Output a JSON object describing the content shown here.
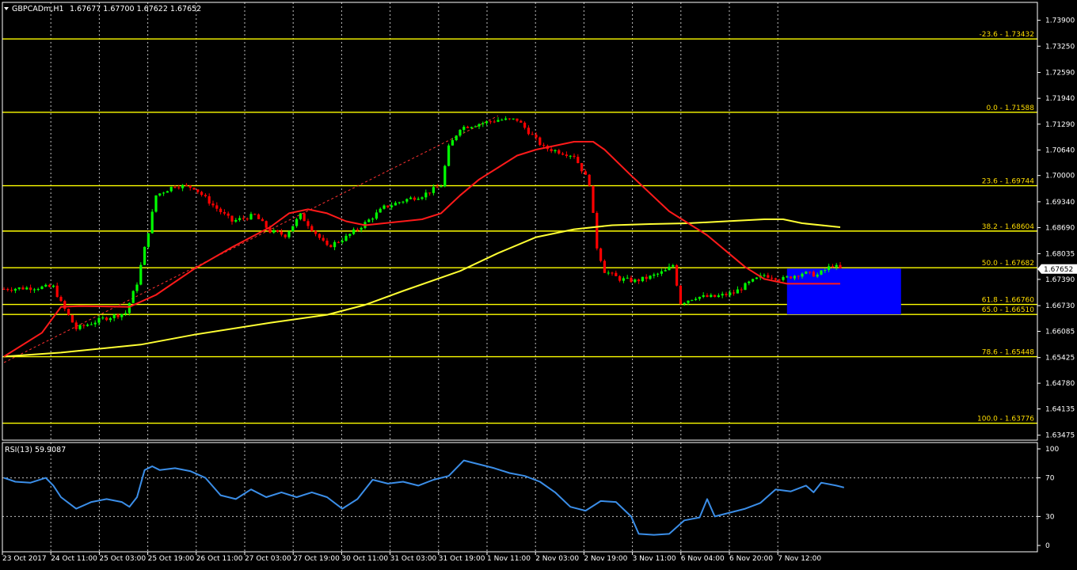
{
  "header": {
    "symbol_label": "GBPCADm,H1",
    "ohlc": "1.67677 1.67700 1.67622 1.67652",
    "dropdown_icon": "triangle-down-icon"
  },
  "colors": {
    "background": "#000000",
    "grid": "#ffffff",
    "fib_line": "#ffff00",
    "ma_fast": "#ff1a1a",
    "ma_slow": "#ffff33",
    "rsi_line": "#3b8ee8",
    "target_box": "#0000ff",
    "candle_bull": "#00ff00",
    "candle_bear": "#ff0000",
    "price_tag_bg": "#ffffff",
    "price_tag_text": "#000000"
  },
  "current_price_label": "1.67652",
  "chart_data": [
    {
      "type": "candlestick",
      "title": "",
      "xlabel": "",
      "ylabel": "",
      "ylim": [
        1.6335,
        1.7435
      ],
      "x_tick_labels": [
        "23 Oct 2017",
        "24 Oct 11:00",
        "25 Oct 03:00",
        "25 Oct 19:00",
        "26 Oct 11:00",
        "27 Oct 03:00",
        "27 Oct 19:00",
        "30 Oct 11:00",
        "31 Oct 03:00",
        "31 Oct 19:00",
        "1 Nov 11:00",
        "2 Nov 03:00",
        "2 Nov 19:00",
        "3 Nov 11:00",
        "6 Nov 04:00",
        "6 Nov 20:00",
        "7 Nov 12:00"
      ],
      "y_tick_labels": [
        "1.73900",
        "1.73250",
        "1.72590",
        "1.71940",
        "1.71290",
        "1.70640",
        "1.70000",
        "1.69340",
        "1.68690",
        "1.68035",
        "1.67390",
        "1.66730",
        "1.66085",
        "1.65425",
        "1.64780",
        "1.64135",
        "1.63475"
      ],
      "y_ticks": [
        1.739,
        1.7325,
        1.7259,
        1.7194,
        1.7129,
        1.7064,
        1.7,
        1.6934,
        1.6869,
        1.68035,
        1.6739,
        1.6673,
        1.66085,
        1.65425,
        1.6478,
        1.64135,
        1.63475
      ],
      "grid": true,
      "fibonacci_levels": [
        {
          "label": "-23.6 - 1.73432",
          "price": 1.73432
        },
        {
          "label": "0.0 - 1.71588",
          "price": 1.71588
        },
        {
          "label": "23.6 - 1.69744",
          "price": 1.69744
        },
        {
          "label": "38.2 - 1.68604",
          "price": 1.68604
        },
        {
          "label": "50.0 - 1.67682",
          "price": 1.67682
        },
        {
          "label": "61.8 - 1.66760",
          "price": 1.6676
        },
        {
          "label": "65.0 - 1.66510",
          "price": 1.6651
        },
        {
          "label": "78.6 - 1.65448",
          "price": 1.65448
        },
        {
          "label": "100.0 - 1.63776",
          "price": 1.63776
        }
      ],
      "target_zone": {
        "price_top": 1.6766,
        "price_bottom": 1.6651,
        "bar_start": 206,
        "bar_end": 236
      },
      "trend_line": {
        "from": [
          0,
          1.653
        ],
        "to": [
          130,
          1.715
        ]
      },
      "anchors": [
        [
          0,
          1.6715
        ],
        [
          7,
          1.6718
        ],
        [
          13,
          1.672
        ],
        [
          15,
          1.668
        ],
        [
          19,
          1.6615
        ],
        [
          26,
          1.664
        ],
        [
          32,
          1.6655
        ],
        [
          35,
          1.673
        ],
        [
          38,
          1.686
        ],
        [
          40,
          1.695
        ],
        [
          45,
          1.6975
        ],
        [
          50,
          1.697
        ],
        [
          55,
          1.6925
        ],
        [
          60,
          1.6885
        ],
        [
          66,
          1.69
        ],
        [
          70,
          1.686
        ],
        [
          74,
          1.685
        ],
        [
          78,
          1.69
        ],
        [
          82,
          1.6855
        ],
        [
          85,
          1.682
        ],
        [
          90,
          1.6845
        ],
        [
          95,
          1.688
        ],
        [
          100,
          1.692
        ],
        [
          106,
          1.694
        ],
        [
          110,
          1.695
        ],
        [
          115,
          1.6975
        ],
        [
          117,
          1.707
        ],
        [
          120,
          1.712
        ],
        [
          125,
          1.713
        ],
        [
          130,
          1.714
        ],
        [
          135,
          1.714
        ],
        [
          138,
          1.711
        ],
        [
          142,
          1.707
        ],
        [
          146,
          1.706
        ],
        [
          150,
          1.705
        ],
        [
          154,
          1.698
        ],
        [
          156,
          1.682
        ],
        [
          158,
          1.676
        ],
        [
          162,
          1.674
        ],
        [
          166,
          1.6735
        ],
        [
          170,
          1.6745
        ],
        [
          174,
          1.676
        ],
        [
          176,
          1.6775
        ],
        [
          178,
          1.668
        ],
        [
          182,
          1.6695
        ],
        [
          187,
          1.6695
        ],
        [
          192,
          1.6705
        ],
        [
          196,
          1.673
        ],
        [
          200,
          1.675
        ],
        [
          205,
          1.674
        ],
        [
          210,
          1.6755
        ],
        [
          214,
          1.675
        ],
        [
          218,
          1.6775
        ],
        [
          220,
          1.6765
        ]
      ],
      "ma_fast_points": [
        [
          0,
          1.6545
        ],
        [
          10,
          1.6605
        ],
        [
          15,
          1.667
        ],
        [
          20,
          1.6672
        ],
        [
          33,
          1.667
        ],
        [
          40,
          1.67
        ],
        [
          50,
          1.6765
        ],
        [
          60,
          1.682
        ],
        [
          70,
          1.687
        ],
        [
          75,
          1.6905
        ],
        [
          80,
          1.6915
        ],
        [
          85,
          1.6905
        ],
        [
          90,
          1.6885
        ],
        [
          95,
          1.6875
        ],
        [
          100,
          1.688
        ],
        [
          110,
          1.689
        ],
        [
          115,
          1.6905
        ],
        [
          120,
          1.695
        ],
        [
          125,
          1.699
        ],
        [
          130,
          1.702
        ],
        [
          135,
          1.705
        ],
        [
          140,
          1.7065
        ],
        [
          145,
          1.7075
        ],
        [
          150,
          1.7085
        ],
        [
          155,
          1.7085
        ],
        [
          158,
          1.7065
        ],
        [
          165,
          1.7
        ],
        [
          175,
          1.691
        ],
        [
          185,
          1.685
        ],
        [
          190,
          1.681
        ],
        [
          195,
          1.677
        ],
        [
          200,
          1.674
        ],
        [
          206,
          1.6728
        ],
        [
          215,
          1.6728
        ],
        [
          220,
          1.6728
        ]
      ],
      "ma_slow_points": [
        [
          0,
          1.6545
        ],
        [
          15,
          1.6555
        ],
        [
          36,
          1.6575
        ],
        [
          50,
          1.66
        ],
        [
          70,
          1.663
        ],
        [
          85,
          1.665
        ],
        [
          95,
          1.6675
        ],
        [
          105,
          1.671
        ],
        [
          120,
          1.676
        ],
        [
          130,
          1.6805
        ],
        [
          140,
          1.6845
        ],
        [
          150,
          1.6865
        ],
        [
          160,
          1.6875
        ],
        [
          170,
          1.6878
        ],
        [
          180,
          1.688
        ],
        [
          190,
          1.6885
        ],
        [
          200,
          1.689
        ],
        [
          205,
          1.689
        ],
        [
          210,
          1.688
        ],
        [
          220,
          1.687
        ]
      ]
    },
    {
      "type": "line",
      "title": "",
      "indicator_label": "RSI(13) 59.9087",
      "ylim": [
        0,
        100
      ],
      "y_tick_labels": [
        "100",
        "70",
        "30",
        "0"
      ],
      "y_ticks": [
        100,
        70,
        30,
        0
      ],
      "levels": [
        70,
        30
      ],
      "grid": true,
      "series": [
        {
          "values": [
            [
              0,
              70
            ],
            [
              3,
              66
            ],
            [
              7,
              65
            ],
            [
              11,
              70
            ],
            [
              13,
              62
            ],
            [
              15,
              50
            ],
            [
              19,
              38
            ],
            [
              23,
              45
            ],
            [
              27,
              48
            ],
            [
              31,
              45
            ],
            [
              33,
              40
            ],
            [
              35,
              50
            ],
            [
              37,
              78
            ],
            [
              39,
              82
            ],
            [
              41,
              78
            ],
            [
              45,
              80
            ],
            [
              49,
              77
            ],
            [
              53,
              70
            ],
            [
              57,
              52
            ],
            [
              61,
              48
            ],
            [
              65,
              58
            ],
            [
              69,
              50
            ],
            [
              73,
              55
            ],
            [
              77,
              50
            ],
            [
              81,
              55
            ],
            [
              85,
              50
            ],
            [
              89,
              38
            ],
            [
              93,
              48
            ],
            [
              97,
              68
            ],
            [
              101,
              64
            ],
            [
              105,
              66
            ],
            [
              109,
              62
            ],
            [
              113,
              68
            ],
            [
              117,
              72
            ],
            [
              121,
              88
            ],
            [
              125,
              84
            ],
            [
              129,
              80
            ],
            [
              133,
              75
            ],
            [
              137,
              72
            ],
            [
              141,
              66
            ],
            [
              145,
              55
            ],
            [
              149,
              40
            ],
            [
              153,
              36
            ],
            [
              157,
              46
            ],
            [
              161,
              45
            ],
            [
              165,
              30
            ],
            [
              167,
              12
            ],
            [
              171,
              11
            ],
            [
              175,
              12
            ],
            [
              179,
              26
            ],
            [
              183,
              29
            ],
            [
              185,
              48
            ],
            [
              187,
              30
            ],
            [
              191,
              34
            ],
            [
              195,
              38
            ],
            [
              199,
              44
            ],
            [
              203,
              58
            ],
            [
              207,
              56
            ],
            [
              211,
              62
            ],
            [
              213,
              55
            ],
            [
              215,
              65
            ],
            [
              219,
              62
            ],
            [
              221,
              60
            ]
          ]
        }
      ]
    }
  ]
}
